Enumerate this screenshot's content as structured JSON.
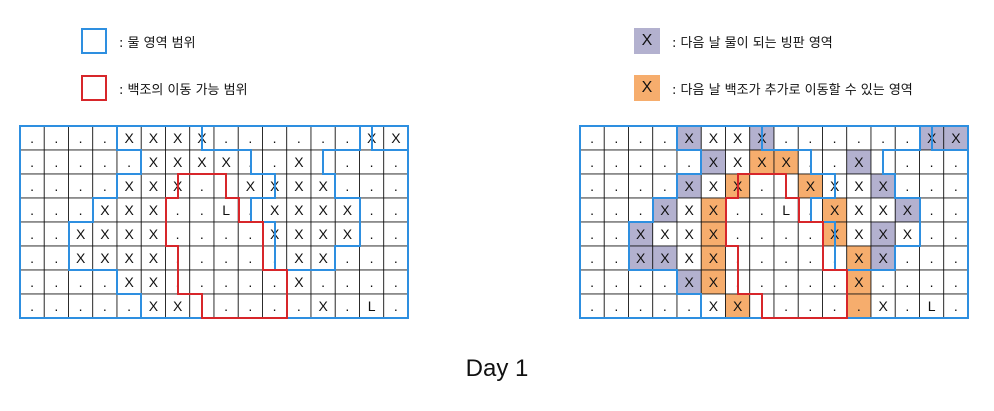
{
  "legend_left": [
    {
      "kind": "water-range",
      "text": ": 물 영역 범위"
    },
    {
      "kind": "swan-range",
      "text": ": 백조의 이동 가능 범위"
    }
  ],
  "legend_right": [
    {
      "kind": "melting-ice",
      "symbol": "X",
      "text": ": 다음 날 물이 되는 빙판 영역"
    },
    {
      "kind": "new-swan-area",
      "symbol": "X",
      "text": ": 다음 날 백조가 추가로 이동할 수 있는 영역"
    }
  ],
  "grids": [
    {
      "name": "left-grid",
      "rows": [
        "....XXXX......XX",
        ".....XXXX..X....",
        "....XXX..XXXX...",
        "...XXX..L.XXXX..",
        "..XXXX....XXXX..",
        "..XXXX.....XX...",
        "....XX.....X....",
        ".....XX.....X.L."
      ],
      "highlights": {}
    },
    {
      "name": "right-grid",
      "rows": [
        "....XXXX......XX",
        ".....XXXX..X....",
        "....XXX..XXXX...",
        "...XXX..L.XXXX..",
        "..XXXX....XXXX..",
        "..XXXX.....XX...",
        "....XX.....X....",
        ".....XX.....X.L."
      ],
      "highlights": {
        "gray": [
          [
            0,
            4
          ],
          [
            0,
            7
          ],
          [
            0,
            14
          ],
          [
            0,
            15
          ],
          [
            1,
            5
          ],
          [
            1,
            11
          ],
          [
            2,
            4
          ],
          [
            2,
            12
          ],
          [
            3,
            3
          ],
          [
            3,
            13
          ],
          [
            4,
            2
          ],
          [
            4,
            12
          ],
          [
            5,
            2
          ],
          [
            5,
            3
          ],
          [
            5,
            12
          ],
          [
            6,
            4
          ]
        ],
        "orange": [
          [
            1,
            7
          ],
          [
            1,
            8
          ],
          [
            2,
            6
          ],
          [
            2,
            9
          ],
          [
            3,
            5
          ],
          [
            3,
            10
          ],
          [
            4,
            5
          ],
          [
            4,
            10
          ],
          [
            5,
            5
          ],
          [
            5,
            11
          ],
          [
            6,
            5
          ],
          [
            6,
            11
          ],
          [
            7,
            6
          ],
          [
            7,
            11
          ]
        ]
      }
    }
  ],
  "day_label": "Day 1",
  "colors": {
    "water": "#2e8fe0",
    "swan": "#d7262a",
    "ice_melt": "#b3b1cf",
    "swan_new": "#f6ad6d"
  }
}
